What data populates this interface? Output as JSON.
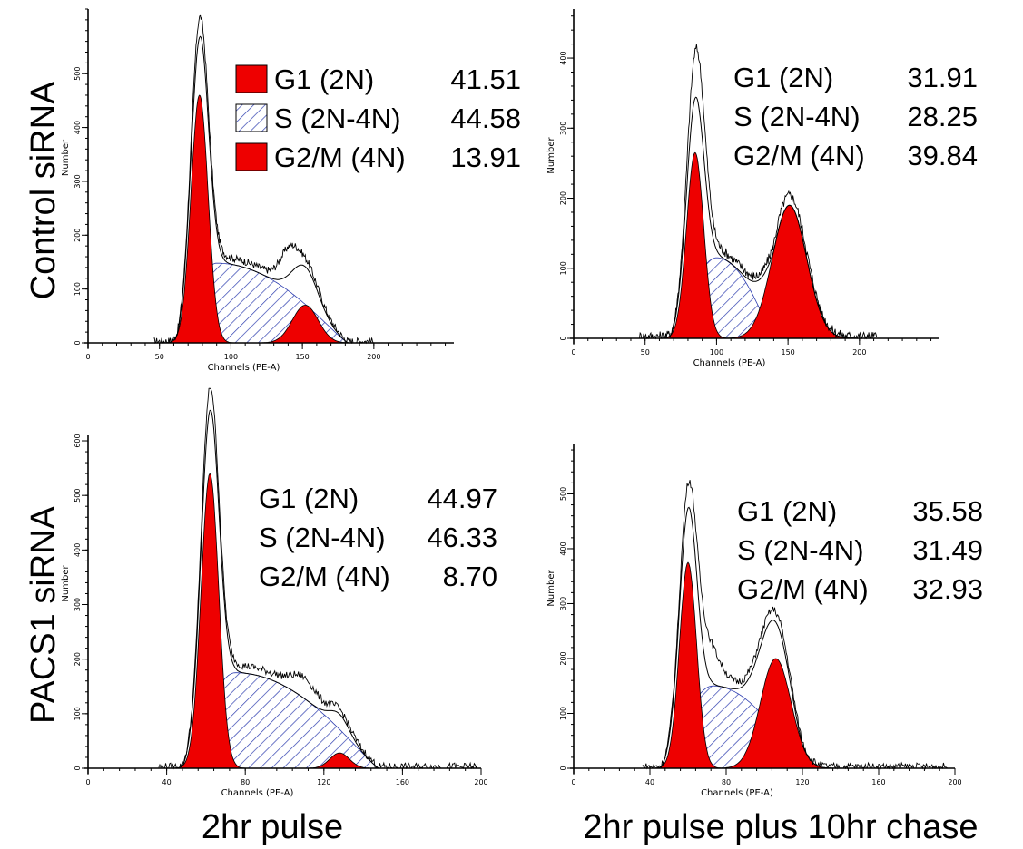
{
  "figure": {
    "row_labels": [
      "Control siRNA",
      "PACS1 siRNA"
    ],
    "column_labels": [
      "2hr pulse",
      "2hr pulse plus 10hr chase"
    ]
  },
  "chart_data": [
    {
      "type": "area",
      "row": "Control siRNA",
      "column": "2hr pulse",
      "xlabel": "Channels (PE-A)",
      "ylabel": "Number",
      "xlim": [
        0,
        256
      ],
      "ylim": [
        0,
        620
      ],
      "xticks": [
        0,
        50,
        100,
        150,
        200
      ],
      "yticks": [
        0,
        100,
        200,
        300,
        400,
        500
      ],
      "legend_swatches": true,
      "stats": [
        {
          "phase": "G1",
          "ploidy": "(2N)",
          "value": "41.51",
          "fill": "solid"
        },
        {
          "phase": "S",
          "ploidy": "(2N-4N)",
          "value": "44.58",
          "fill": "hatch"
        },
        {
          "phase": "G2/M",
          "ploidy": "(4N)",
          "value": "13.91",
          "fill": "solid"
        }
      ],
      "g1": {
        "mean": 78,
        "sd": 6,
        "peak": 460
      },
      "s": {
        "start": 62,
        "peak_x": 90,
        "end": 182,
        "peak": 148
      },
      "g2": {
        "mean": 152,
        "sd": 9,
        "peak": 70
      },
      "bump": {
        "x": 140,
        "height": 60
      },
      "hist_range": [
        46,
        200
      ]
    },
    {
      "type": "area",
      "row": "Control siRNA",
      "column": "2hr pulse plus 10hr chase",
      "xlabel": "Channels (PE-A)",
      "ylabel": "Number",
      "xlim": [
        0,
        256
      ],
      "ylim": [
        0,
        470
      ],
      "xticks": [
        0,
        50,
        100,
        150,
        200
      ],
      "yticks": [
        0,
        100,
        200,
        300,
        400
      ],
      "legend_swatches": false,
      "stats": [
        {
          "phase": "G1",
          "ploidy": "(2N)",
          "value": "31.91",
          "fill": "solid"
        },
        {
          "phase": "S",
          "ploidy": "(2N-4N)",
          "value": "28.25",
          "fill": "hatch"
        },
        {
          "phase": "G2/M",
          "ploidy": "(4N)",
          "value": "39.84",
          "fill": "solid"
        }
      ],
      "g1": {
        "mean": 85,
        "sd": 6,
        "peak": 265
      },
      "s": {
        "start": 68,
        "peak_x": 100,
        "end": 140,
        "peak": 115
      },
      "g2": {
        "mean": 151,
        "sd": 12,
        "peak": 190
      },
      "bump": {
        "x": 88,
        "height": 70
      },
      "hist_range": [
        46,
        212
      ]
    },
    {
      "type": "area",
      "row": "PACS1 siRNA",
      "column": "2hr pulse",
      "xlabel": "Channels (PE-A)",
      "ylabel": "Number",
      "xlim": [
        0,
        200
      ],
      "ylim": [
        0,
        610
      ],
      "xticks": [
        0,
        40,
        80,
        120,
        160,
        200
      ],
      "yticks": [
        0,
        100,
        200,
        300,
        400,
        500,
        600
      ],
      "legend_swatches": false,
      "stats": [
        {
          "phase": "G1",
          "ploidy": "(2N)",
          "value": "44.97",
          "fill": "solid"
        },
        {
          "phase": "S",
          "ploidy": "(2N-4N)",
          "value": "46.33",
          "fill": "hatch"
        },
        {
          "phase": "G2/M",
          "ploidy": "(4N)",
          "value": "8.70",
          "fill": "solid"
        }
      ],
      "g1": {
        "mean": 62,
        "sd": 4.5,
        "peak": 540
      },
      "s": {
        "start": 48,
        "peak_x": 75,
        "end": 148,
        "peak": 175
      },
      "g2": {
        "mean": 128,
        "sd": 5,
        "peak": 28
      },
      "bump": {
        "x": 110,
        "height": 40
      },
      "hist_range": [
        36,
        198
      ]
    },
    {
      "type": "area",
      "row": "PACS1 siRNA",
      "column": "2hr pulse plus 10hr chase",
      "xlabel": "Channels (PE-A)",
      "ylabel": "Number",
      "xlim": [
        0,
        200
      ],
      "ylim": [
        0,
        590
      ],
      "xticks": [
        0,
        40,
        80,
        120,
        160,
        200
      ],
      "yticks": [
        0,
        100,
        200,
        300,
        400,
        500
      ],
      "legend_swatches": false,
      "stats": [
        {
          "phase": "G1",
          "ploidy": "(2N)",
          "value": "35.58",
          "fill": "solid"
        },
        {
          "phase": "S",
          "ploidy": "(2N-4N)",
          "value": "31.49",
          "fill": "hatch"
        },
        {
          "phase": "G2/M",
          "ploidy": "(4N)",
          "value": "32.93",
          "fill": "solid"
        }
      ],
      "g1": {
        "mean": 60,
        "sd": 4.5,
        "peak": 375
      },
      "s": {
        "start": 46,
        "peak_x": 73,
        "end": 120,
        "peak": 150
      },
      "g2": {
        "mean": 106,
        "sd": 8,
        "peak": 200
      },
      "bump": {
        "x": 70,
        "height": 90
      },
      "hist_range": [
        36,
        196
      ]
    }
  ]
}
